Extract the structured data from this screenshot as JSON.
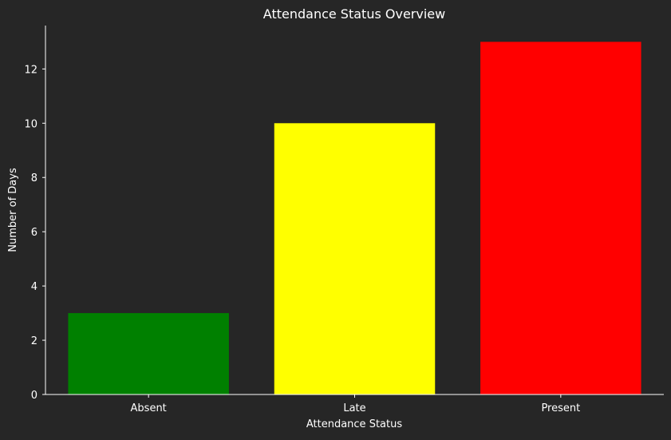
{
  "chart_data": {
    "type": "bar",
    "title": "Attendance Status Overview",
    "xlabel": "Attendance Status",
    "ylabel": "Number of Days",
    "categories": [
      "Absent",
      "Late",
      "Present"
    ],
    "values": [
      3,
      10,
      13
    ],
    "colors": [
      "#008000",
      "#ffff00",
      "#ff0000"
    ],
    "ylim": [
      0,
      13.6
    ],
    "yticks": [
      0,
      2,
      4,
      6,
      8,
      10,
      12
    ],
    "grid": false,
    "legend": "none"
  },
  "theme": {
    "background": "#262626",
    "text": "#ffffff",
    "axis": "#ffffff"
  }
}
